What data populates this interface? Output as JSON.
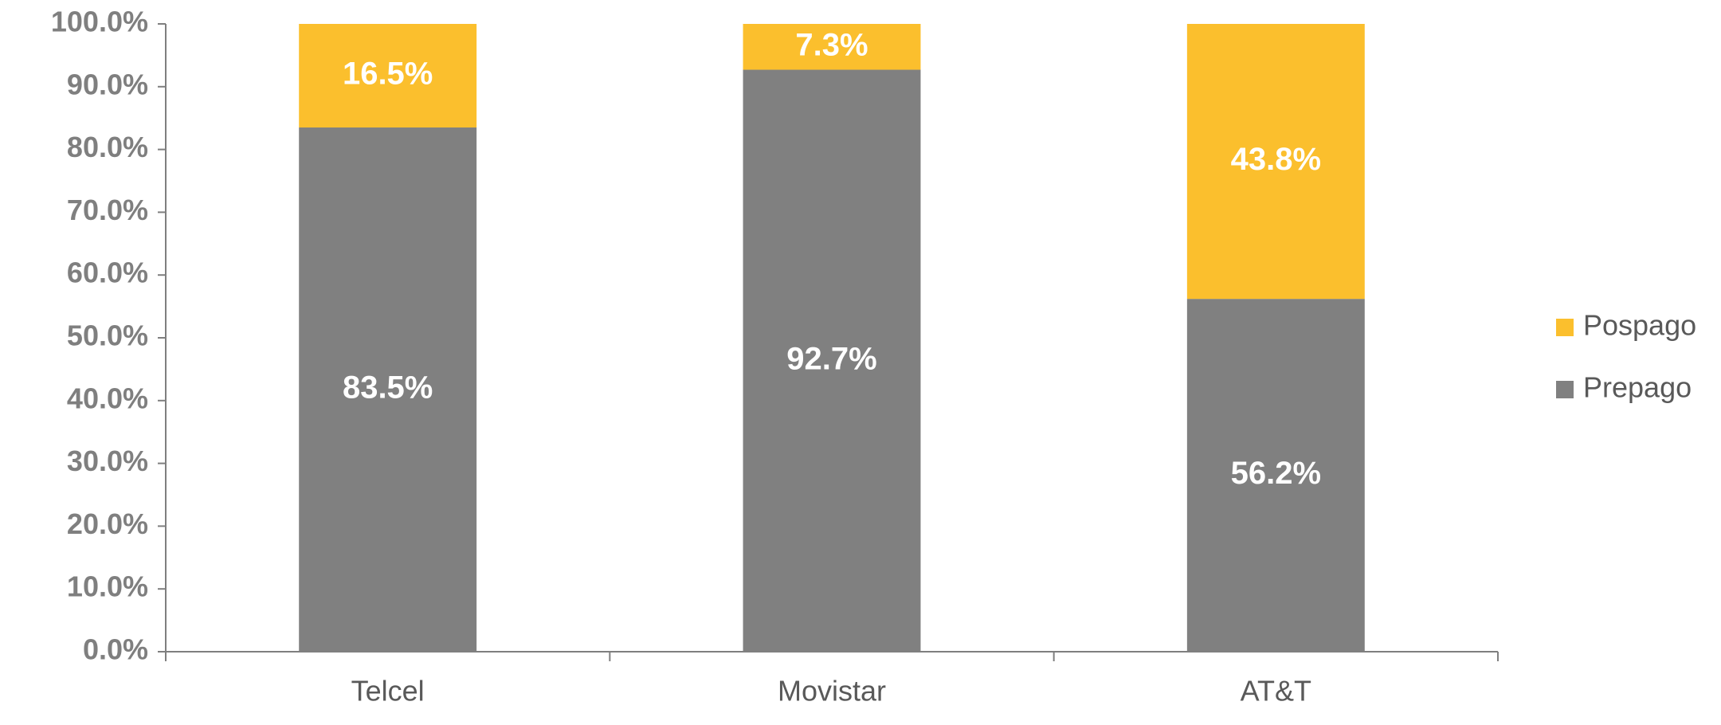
{
  "chart_data": {
    "type": "stacked_bar",
    "categories": [
      "Telcel",
      "Movistar",
      "AT&T"
    ],
    "series": [
      {
        "name": "Prepago",
        "color": "#808080",
        "values": [
          83.5,
          92.7,
          56.2
        ],
        "value_labels": [
          "83.5%",
          "92.7%",
          "56.2%"
        ]
      },
      {
        "name": "Pospago",
        "color": "#fbbf2d",
        "values": [
          16.5,
          7.3,
          43.8
        ],
        "value_labels": [
          "16.5%",
          "7.3%",
          "43.8%"
        ]
      }
    ],
    "ylim": [
      0,
      100
    ],
    "yticks": [
      {
        "value": 0,
        "label": "0.0%"
      },
      {
        "value": 10,
        "label": "10.0%"
      },
      {
        "value": 20,
        "label": "20.0%"
      },
      {
        "value": 30,
        "label": "30.0%"
      },
      {
        "value": 40,
        "label": "40.0%"
      },
      {
        "value": 50,
        "label": "50.0%"
      },
      {
        "value": 60,
        "label": "60.0%"
      },
      {
        "value": 70,
        "label": "70.0%"
      },
      {
        "value": 80,
        "label": "80.0%"
      },
      {
        "value": 90,
        "label": "90.0%"
      },
      {
        "value": 100,
        "label": "100.0%"
      }
    ],
    "grid": false,
    "legend": "right"
  }
}
